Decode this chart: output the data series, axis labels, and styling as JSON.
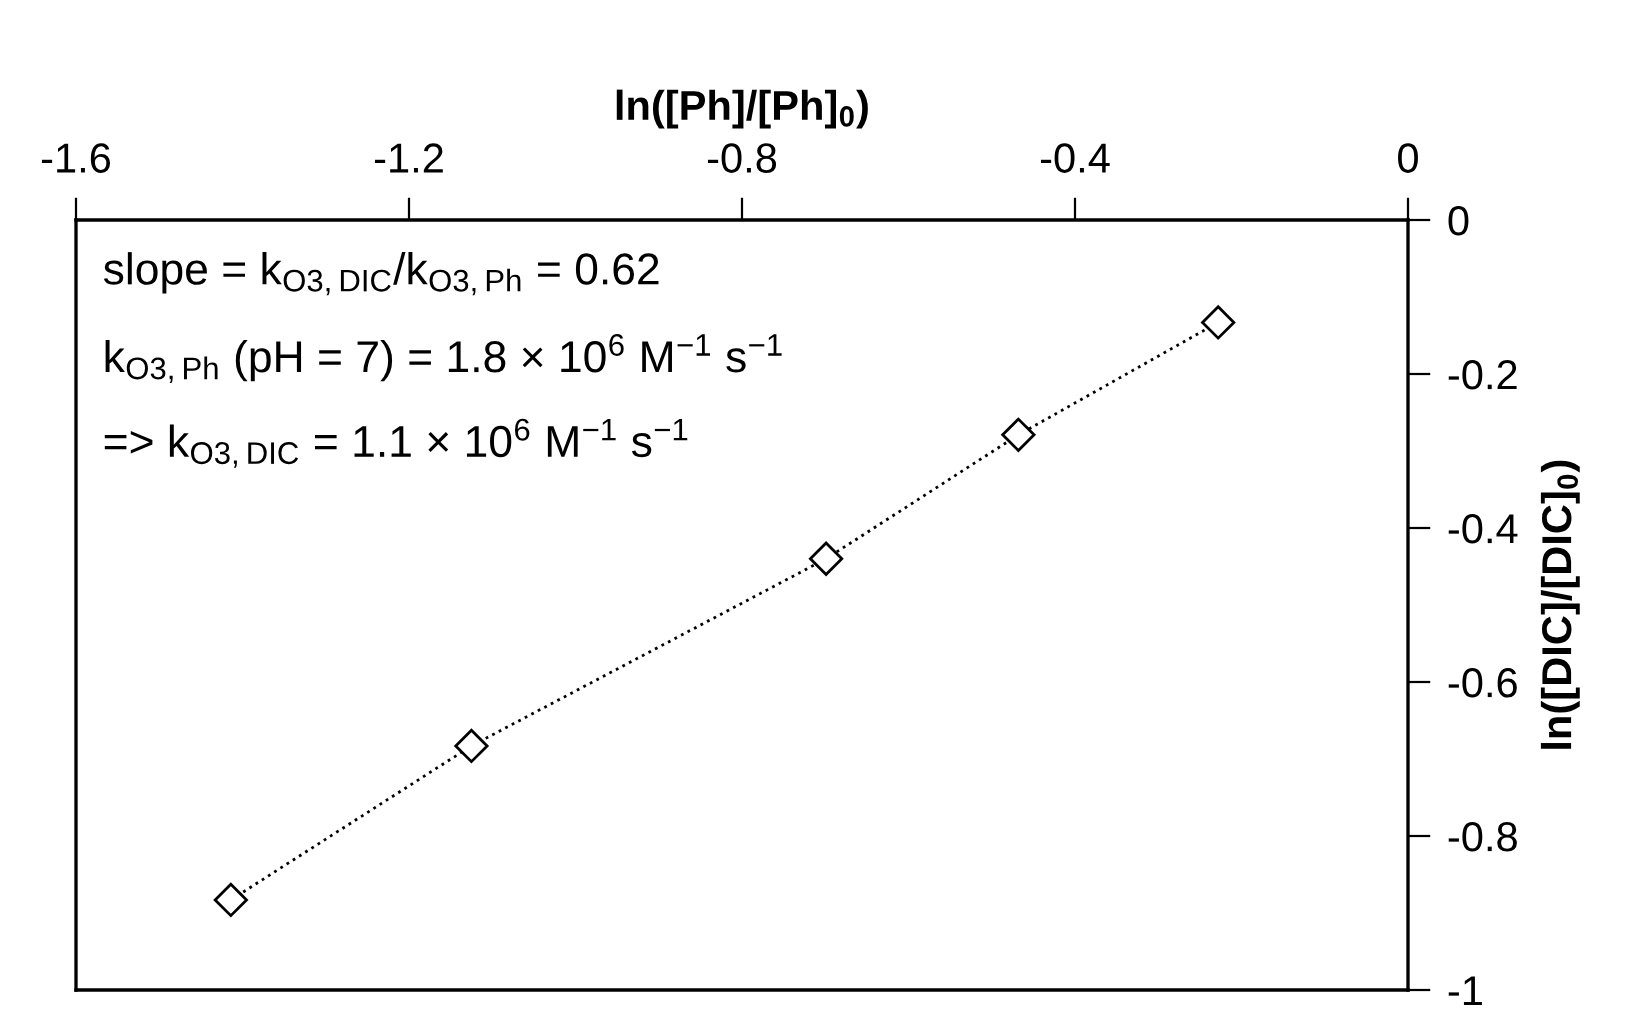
{
  "chart_data": {
    "type": "line",
    "xlabel": "ln([Ph]/[Ph]$_{0}$)",
    "ylabel": "ln([DIC]/[DIC]$_{0}$)",
    "x": [
      -1.414,
      -1.125,
      -0.699,
      -0.468,
      -0.228
    ],
    "series": [
      {
        "color": "#000000",
        "values": [
          -0.883,
          -0.683,
          -0.44,
          -0.279,
          -0.133
        ]
      }
    ],
    "marker": "diamond",
    "line_style": "dotted",
    "xlim": [
      -1.6,
      0
    ],
    "ylim": [
      -1,
      0
    ],
    "xticks": [
      -1.6,
      -1.2,
      -0.8,
      -0.4,
      0
    ],
    "yticks": [
      0,
      -0.2,
      -0.4,
      -0.6,
      -0.8,
      -1
    ],
    "grid": false,
    "annotations": [
      "slope = k$_{O3,DIC}$/k$_{O3,Ph}$ = 0.62",
      "k$_{O3,Ph}$ (pH = 7) = 1.8 × 10$^{6}$ M$^{−1}$ s$^{−1}$",
      "=> k$_{O3,DIC}$ = 1.1 × 10$^{6}$ M$^{−1}$ s$^{−1}$"
    ]
  }
}
